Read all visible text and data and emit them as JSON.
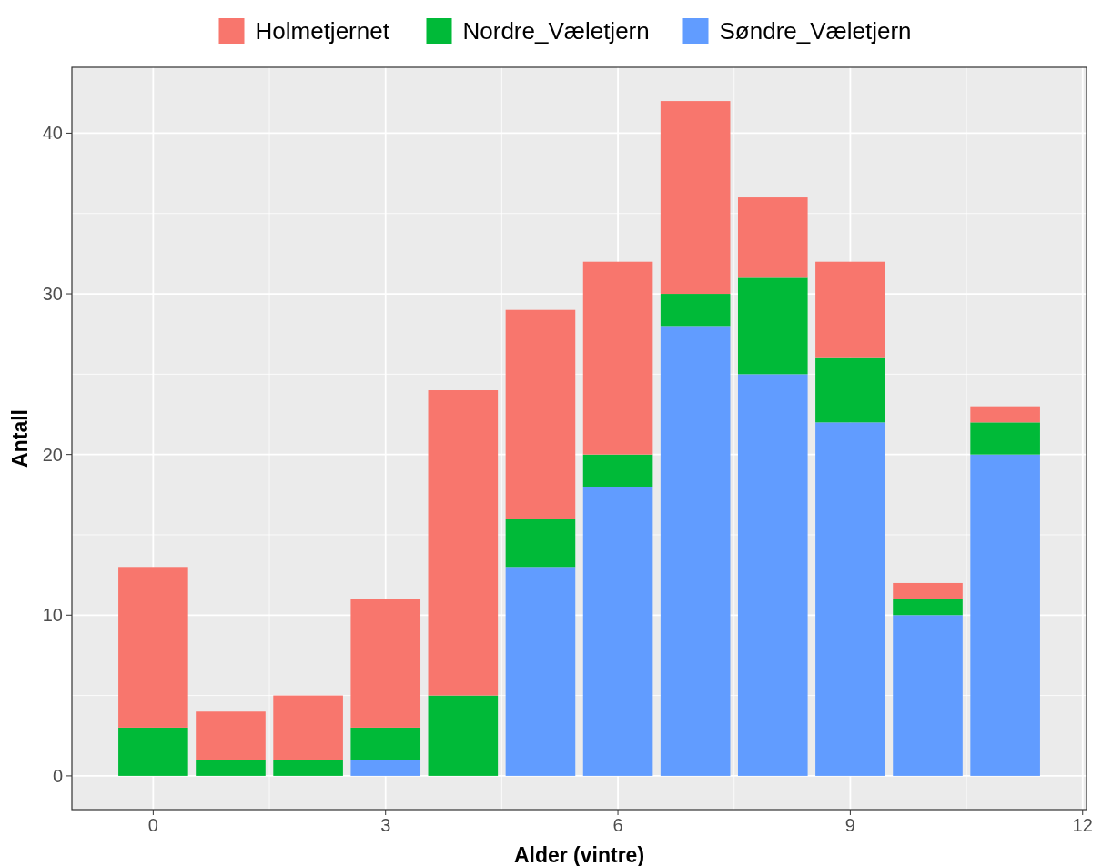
{
  "chart_data": {
    "type": "bar",
    "stacked": true,
    "xlabel": "Alder (vintre)",
    "ylabel": "Antall",
    "x": [
      0,
      1,
      2,
      3,
      4,
      5,
      6,
      7,
      8,
      9,
      10,
      11
    ],
    "series": [
      {
        "name": "Søndre_Væletjern",
        "color": "#619cff",
        "values": [
          0,
          0,
          0,
          1,
          0,
          13,
          18,
          28,
          25,
          22,
          10,
          20
        ]
      },
      {
        "name": "Nordre_Væletjern",
        "color": "#00ba38",
        "values": [
          3,
          1,
          1,
          2,
          5,
          3,
          2,
          2,
          6,
          4,
          1,
          2
        ]
      },
      {
        "name": "Holmetjernet",
        "color": "#f8766d",
        "values": [
          10,
          3,
          4,
          8,
          19,
          13,
          12,
          12,
          5,
          6,
          1,
          1
        ]
      }
    ],
    "xlim": [
      -1.05,
      12.05
    ],
    "xticks": [
      0,
      3,
      6,
      9,
      12
    ],
    "ylim": [
      -2.1,
      44.1
    ],
    "yticks": [
      0,
      10,
      20,
      30,
      40
    ],
    "grid": true,
    "legend": "top"
  }
}
